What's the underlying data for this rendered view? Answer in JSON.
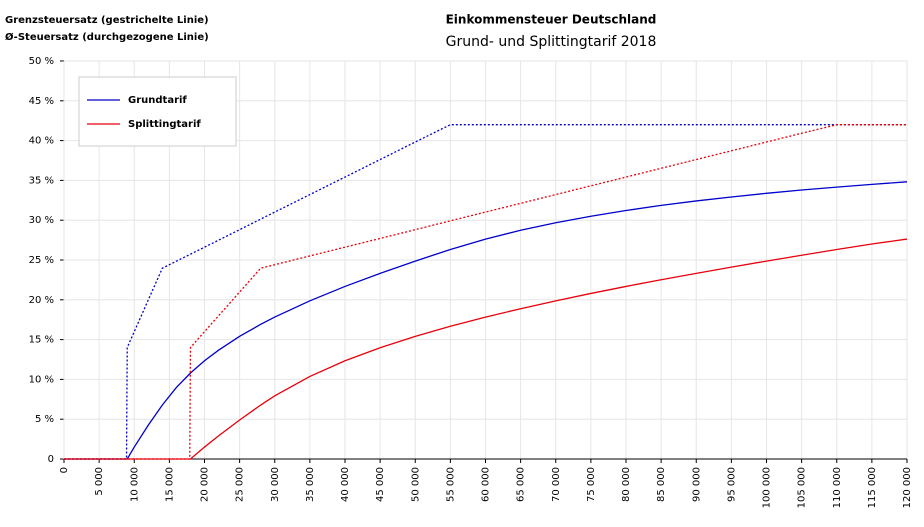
{
  "chart_data": {
    "type": "line",
    "title": "Einkommensteuer Deutschland",
    "subtitle": "Grund- und Splittingtarif 2018",
    "annotations": [
      "Grenzsteuersatz (gestrichelte Linie)",
      "Ø-Steuersatz (durchgezogene Linie)"
    ],
    "x": [
      0,
      5000,
      8900,
      9000,
      10000,
      12000,
      14000,
      16000,
      17900,
      18000,
      20000,
      22000,
      25000,
      28000,
      30000,
      35000,
      40000,
      45000,
      50000,
      55000,
      60000,
      65000,
      70000,
      75000,
      80000,
      85000,
      90000,
      95000,
      100000,
      105000,
      110000,
      115000,
      120000
    ],
    "series": [
      {
        "name": "Grundtarif",
        "color": "#0000cc",
        "values": [
          0,
          0,
          0,
          0,
          1.5,
          4.25,
          6.78,
          8.99,
          10.71,
          10.8,
          12.34,
          13.67,
          15.41,
          16.92,
          17.83,
          19.87,
          21.68,
          23.32,
          24.86,
          26.32,
          27.63,
          28.74,
          29.68,
          30.5,
          31.22,
          31.86,
          32.42,
          32.92,
          33.38,
          33.79,
          34.16,
          34.5,
          34.82
        ],
        "marginal_values": [
          0,
          0,
          0,
          14,
          16.0,
          19.99,
          23.97,
          24.85,
          25.69,
          25.73,
          26.61,
          27.49,
          28.81,
          30.14,
          31.02,
          33.22,
          35.42,
          37.62,
          39.82,
          42,
          42,
          42,
          42,
          42,
          42,
          42,
          42,
          42,
          42,
          42,
          42,
          42,
          42
        ]
      },
      {
        "name": "Splittingtarif",
        "color": "#e8000b",
        "values": [
          0,
          0,
          0,
          0,
          0,
          0,
          0,
          0,
          0,
          0,
          1.5,
          2.91,
          4.9,
          6.78,
          7.94,
          10.37,
          12.34,
          13.98,
          15.41,
          16.68,
          17.83,
          18.88,
          19.87,
          20.8,
          21.68,
          22.52,
          23.32,
          24.11,
          24.86,
          25.6,
          26.32,
          27.01,
          27.63
        ],
        "marginal_values": [
          0,
          0,
          0,
          0,
          0,
          0,
          0,
          0,
          0,
          14,
          16.0,
          17.99,
          20.98,
          23.97,
          24.41,
          25.51,
          26.61,
          27.71,
          28.81,
          29.92,
          31.02,
          32.12,
          33.22,
          34.32,
          35.42,
          36.52,
          37.62,
          38.72,
          39.82,
          40.92,
          42,
          42,
          42
        ]
      }
    ],
    "xlim": [
      0,
      120000
    ],
    "xticks": [
      0,
      {
        "value": 5000,
        "label": "5 000"
      },
      {
        "value": 10000,
        "label": "10 000"
      },
      {
        "value": 15000,
        "label": "15 000"
      },
      {
        "value": 20000,
        "label": "20 000"
      },
      {
        "value": 25000,
        "label": "25 000"
      },
      {
        "value": 30000,
        "label": "30 000"
      },
      {
        "value": 35000,
        "label": "35 000"
      },
      {
        "value": 40000,
        "label": "40 000"
      },
      {
        "value": 45000,
        "label": "45 000"
      },
      {
        "value": 50000,
        "label": "50 000"
      },
      {
        "value": 55000,
        "label": "55 000"
      },
      {
        "value": 60000,
        "label": "60 000"
      },
      {
        "value": 65000,
        "label": "65 000"
      },
      {
        "value": 70000,
        "label": "70 000"
      },
      {
        "value": 75000,
        "label": "75 000"
      },
      {
        "value": 80000,
        "label": "80 000"
      },
      {
        "value": 85000,
        "label": "85 000"
      },
      {
        "value": 90000,
        "label": "90 000"
      },
      {
        "value": 95000,
        "label": "95 000"
      },
      {
        "value": 100000,
        "label": "100 000"
      },
      {
        "value": 105000,
        "label": "105 000"
      },
      {
        "value": 110000,
        "label": "110 000"
      },
      {
        "value": 115000,
        "label": "115 000"
      },
      {
        "value": 120000,
        "label": "120 000"
      }
    ],
    "ylim": [
      0,
      50
    ],
    "yticks": [
      0,
      {
        "value": 5,
        "label": "5 %"
      },
      {
        "value": 10,
        "label": "10 %"
      },
      {
        "value": 15,
        "label": "15 %"
      },
      {
        "value": 20,
        "label": "20 %"
      },
      {
        "value": 25,
        "label": "25 %"
      },
      {
        "value": 30,
        "label": "30 %"
      },
      {
        "value": 35,
        "label": "35 %"
      },
      {
        "value": 40,
        "label": "40 %"
      },
      {
        "value": 45,
        "label": "45 %"
      },
      {
        "value": 50,
        "label": "50 %"
      }
    ],
    "grid": true,
    "legend": "upper left"
  }
}
